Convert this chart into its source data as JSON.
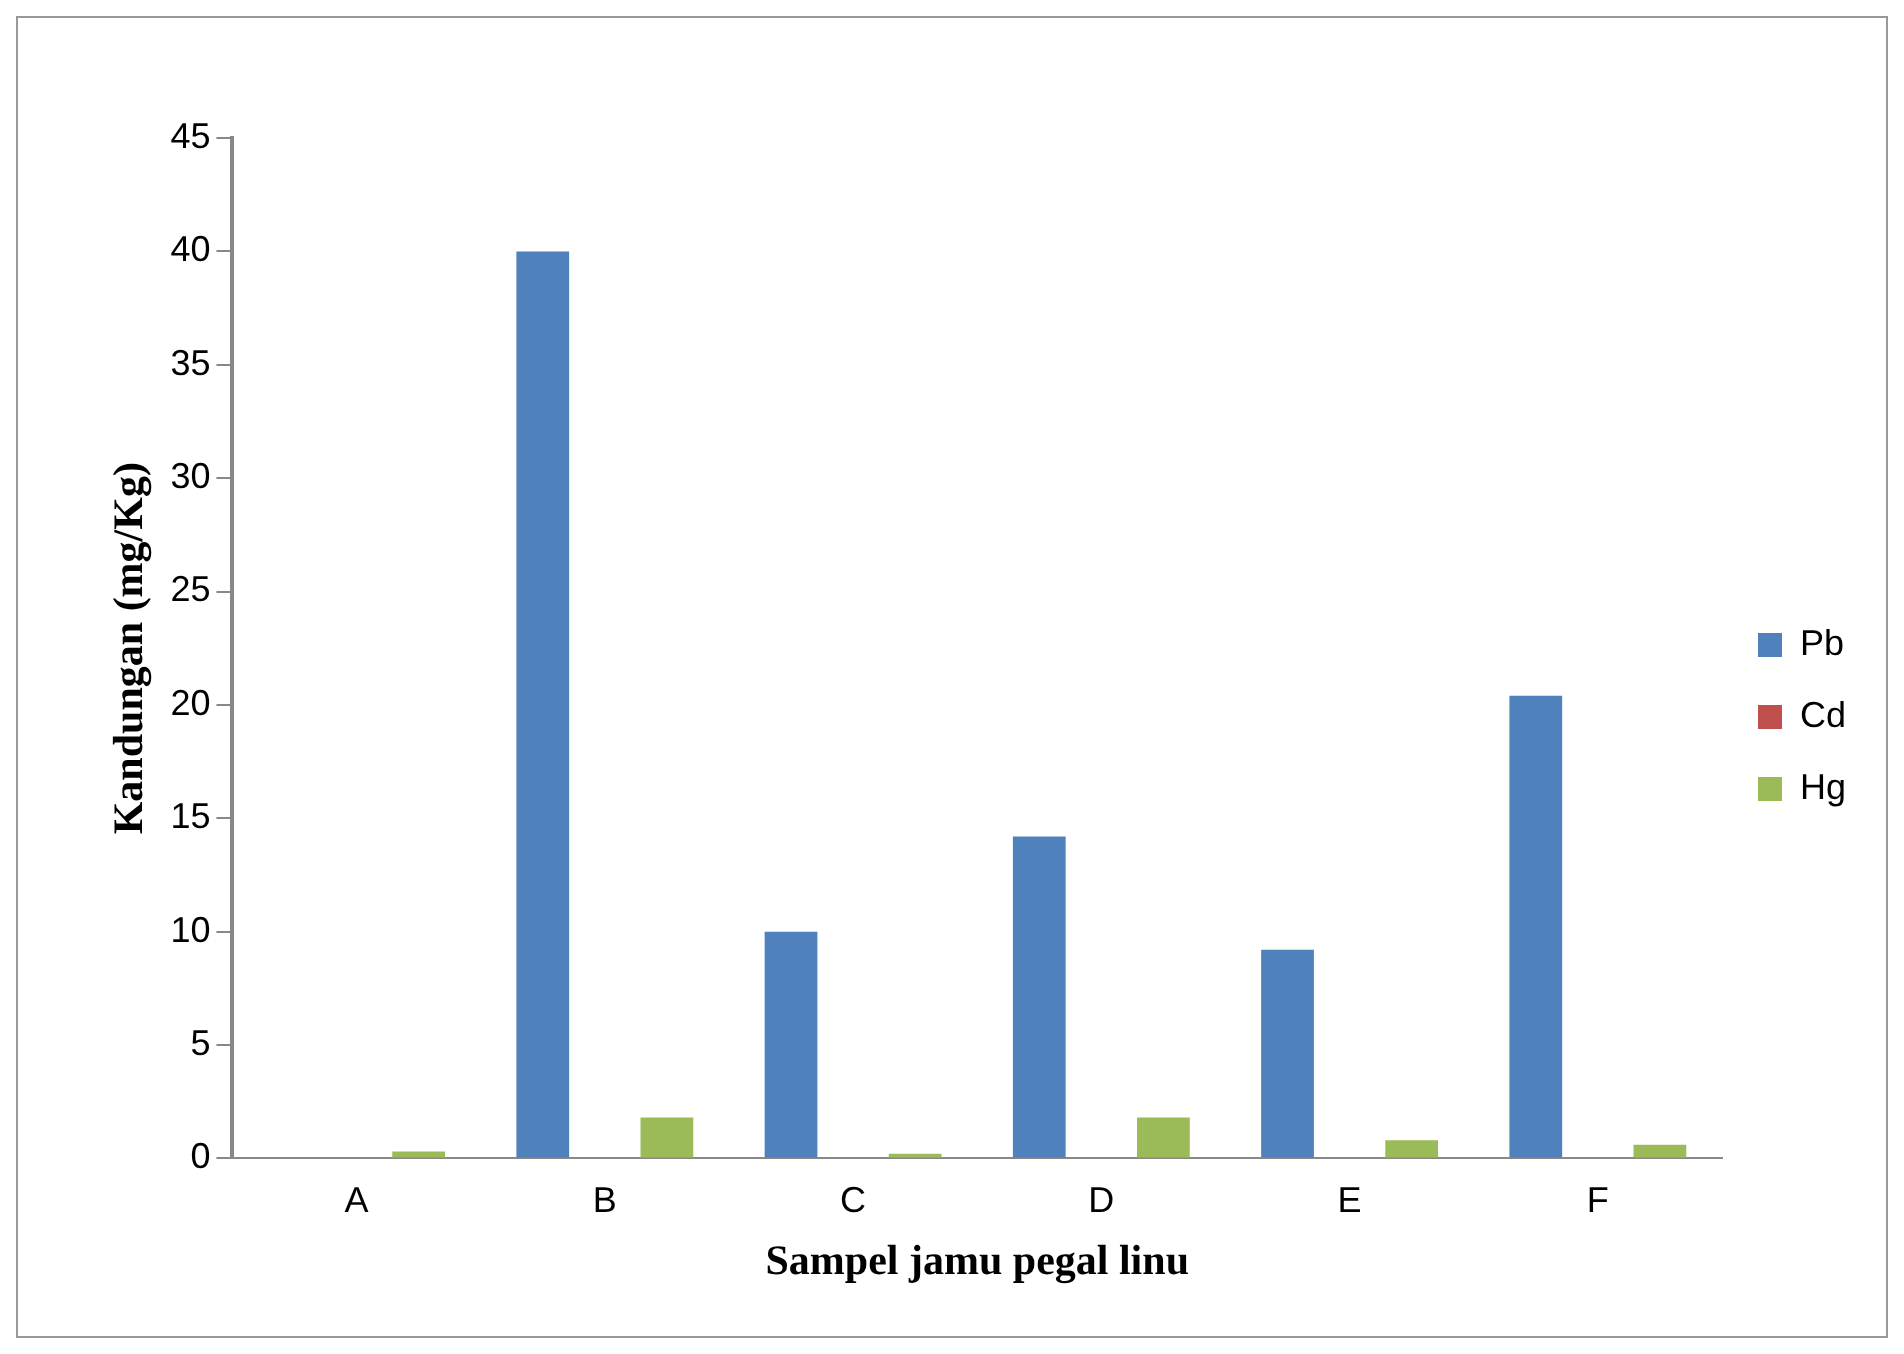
{
  "chart_data": {
    "type": "bar",
    "xlabel": "Sampel jamu pegal linu",
    "ylabel": "Kandungan (mg/Kg)",
    "categories": [
      "A",
      "B",
      "C",
      "D",
      "E",
      "F"
    ],
    "series": [
      {
        "name": "Pb",
        "color": "#4f81bd",
        "values": [
          0,
          40,
          10,
          14.2,
          9.2,
          20.4
        ]
      },
      {
        "name": "Cd",
        "color": "#c0504d",
        "values": [
          0,
          0,
          0,
          0,
          0,
          0
        ]
      },
      {
        "name": "Hg",
        "color": "#9bbb59",
        "values": [
          0.3,
          1.8,
          0.2,
          1.8,
          0.8,
          0.6
        ]
      }
    ],
    "ylim": [
      0,
      45
    ],
    "yticks": [
      0,
      5,
      10,
      15,
      20,
      25,
      30,
      35,
      40,
      45
    ],
    "grid": false,
    "legend": "right"
  }
}
